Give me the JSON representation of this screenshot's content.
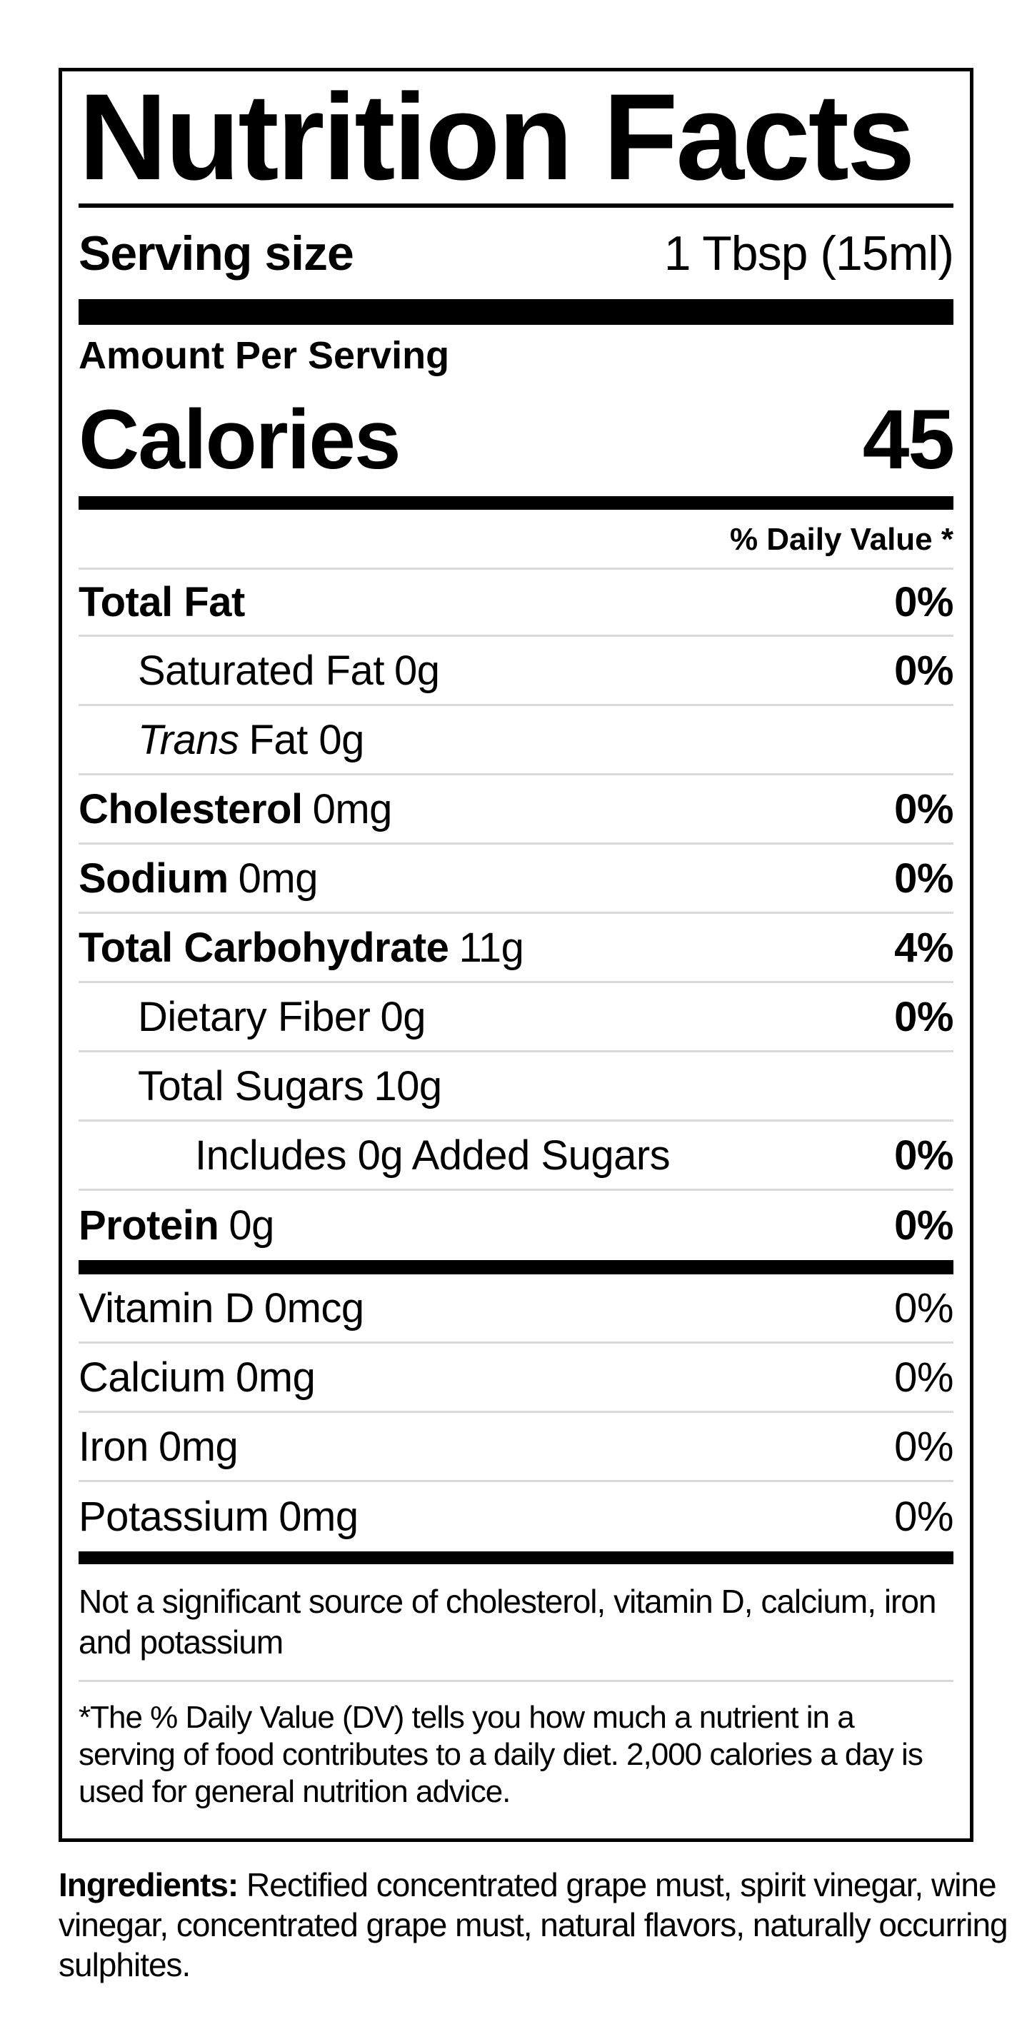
{
  "colors": {
    "text": "#000000",
    "divider": "#d9d9d9",
    "background": "#ffffff"
  },
  "label": {
    "title": "Nutrition Facts",
    "serving": {
      "label": "Serving size",
      "value": "1 Tbsp (15ml)"
    },
    "amount_per_serving": "Amount Per Serving",
    "calories": {
      "label": "Calories",
      "value": "45"
    },
    "daily_value_header": "% Daily Value *",
    "rows": [
      {
        "name": "Total Fat",
        "amount": "",
        "pct": "0%"
      },
      {
        "name": "Saturated Fat",
        "amount": "0g",
        "pct": "0%"
      },
      {
        "name_italic": "Trans",
        "name_rest": "Fat 0g",
        "pct": ""
      },
      {
        "name": "Cholesterol",
        "amount": "0mg",
        "pct": "0%"
      },
      {
        "name": "Sodium",
        "amount": "0mg",
        "pct": "0%"
      },
      {
        "name": "Total Carbohydrate",
        "amount": "11g",
        "pct": "4%"
      },
      {
        "name": "Dietary Fiber",
        "amount": "0g",
        "pct": "0%"
      },
      {
        "name": "Total Sugars",
        "amount": "10g",
        "pct": ""
      },
      {
        "name": "Includes 0g Added Sugars",
        "amount": "",
        "pct": "0%"
      },
      {
        "name": "Protein",
        "amount": "0g",
        "pct": "0%"
      }
    ],
    "vitamins": [
      {
        "name": "Vitamin D",
        "amount": "0mcg",
        "pct": "0%"
      },
      {
        "name": "Calcium",
        "amount": "0mg",
        "pct": "0%"
      },
      {
        "name": "Iron",
        "amount": "0mg",
        "pct": "0%"
      },
      {
        "name": "Potassium",
        "amount": "0mg",
        "pct": "0%"
      }
    ],
    "note": "Not a significant source of cholesterol, vitamin D, calcium, iron and potassium",
    "footnote": "*The % Daily Value (DV) tells you how much a nutrient in a serving of food contributes to a daily diet. 2,000 calories a day is used for general nutrition advice."
  },
  "ingredients": {
    "label": "Ingredients:",
    "text": "Rectified concentrated grape must, spirit vinegar, wine vinegar, concentrated grape must, natural flavors, naturally occurring sulphites."
  }
}
